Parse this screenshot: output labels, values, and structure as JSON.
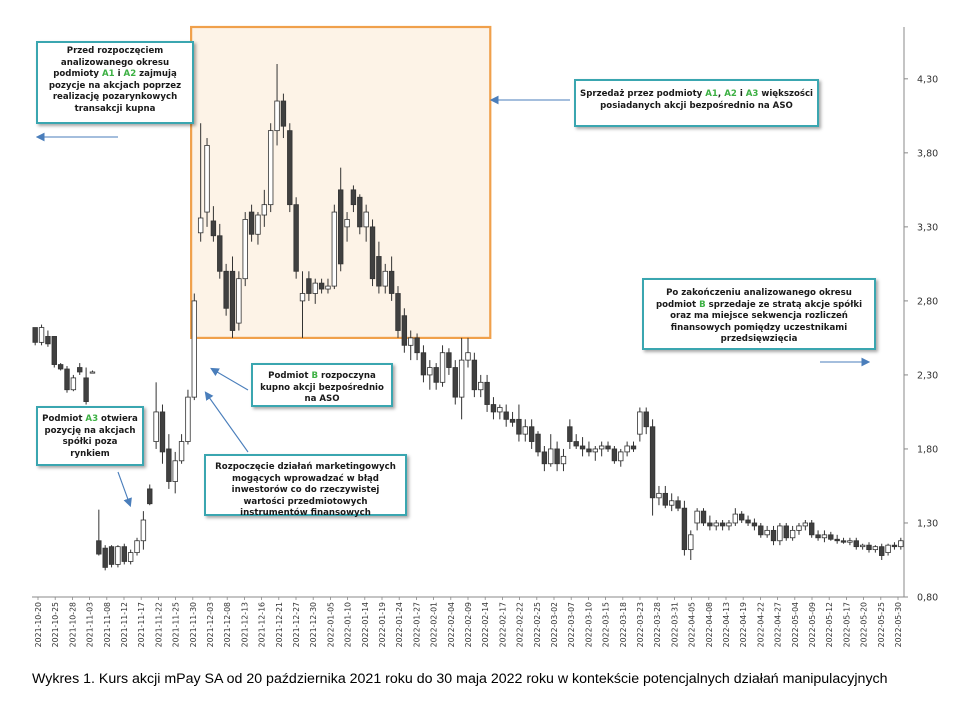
{
  "chart_data": {
    "type": "candlestick",
    "y_ticks": [
      "4,30",
      "3,80",
      "3,30",
      "2,80",
      "2,30",
      "1,80",
      "1,30",
      "0,80"
    ],
    "y_tick_values": [
      4.3,
      3.8,
      3.3,
      2.8,
      2.3,
      1.8,
      1.3,
      0.8
    ],
    "ylim": [
      0.8,
      4.65
    ],
    "y_axis_position": "right",
    "x_tick_labels": [
      "2021-10-20",
      "2021-10-25",
      "2021-10-28",
      "2021-11-03",
      "2021-11-08",
      "2021-11-12",
      "2021-11-17",
      "2021-11-22",
      "2021-11-25",
      "2021-11-30",
      "2021-12-03",
      "2021-12-08",
      "2021-12-13",
      "2021-12-16",
      "2021-12-21",
      "2021-12-27",
      "2021-12-30",
      "2022-01-05",
      "2022-01-10",
      "2022-01-14",
      "2022-01-19",
      "2022-01-24",
      "2022-01-27",
      "2022-02-01",
      "2022-02-04",
      "2022-02-09",
      "2022-02-14",
      "2022-02-17",
      "2022-02-22",
      "2022-02-25",
      "2022-03-02",
      "2022-03-07",
      "2022-03-10",
      "2022-03-15",
      "2022-03-18",
      "2022-03-23",
      "2022-03-28",
      "2022-03-31",
      "2022-04-05",
      "2022-04-08",
      "2022-04-13",
      "2022-04-19",
      "2022-04-22",
      "2022-04-27",
      "2022-05-04",
      "2022-05-09",
      "2022-05-12",
      "2022-05-17",
      "2022-05-20",
      "2022-05-25",
      "2022-05-30"
    ],
    "grid": false,
    "candles": [
      {
        "o": 2.62,
        "h": 2.62,
        "l": 2.5,
        "c": 2.52
      },
      {
        "o": 2.52,
        "h": 2.64,
        "l": 2.5,
        "c": 2.62
      },
      {
        "o": 2.56,
        "h": 2.6,
        "l": 2.49,
        "c": 2.51
      },
      {
        "o": 2.56,
        "h": 2.56,
        "l": 2.35,
        "c": 2.37
      },
      {
        "o": 2.37,
        "h": 2.38,
        "l": 2.33,
        "c": 2.34
      },
      {
        "o": 2.34,
        "h": 2.36,
        "l": 2.18,
        "c": 2.2
      },
      {
        "o": 2.2,
        "h": 2.3,
        "l": 2.19,
        "c": 2.28
      },
      {
        "o": 2.35,
        "h": 2.38,
        "l": 2.3,
        "c": 2.32
      },
      {
        "o": 2.28,
        "h": 2.35,
        "l": 2.1,
        "c": 2.12
      },
      {
        "o": 2.32,
        "h": 2.33,
        "l": 2.31,
        "c": 2.32
      },
      {
        "o": 1.18,
        "h": 1.39,
        "l": 1.08,
        "c": 1.09
      },
      {
        "o": 1.13,
        "h": 1.15,
        "l": 0.98,
        "c": 1.0
      },
      {
        "o": 1.14,
        "h": 1.15,
        "l": 1.0,
        "c": 1.02
      },
      {
        "o": 1.02,
        "h": 1.15,
        "l": 1.0,
        "c": 1.14
      },
      {
        "o": 1.14,
        "h": 1.16,
        "l": 1.02,
        "c": 1.04
      },
      {
        "o": 1.04,
        "h": 1.12,
        "l": 1.02,
        "c": 1.1
      },
      {
        "o": 1.1,
        "h": 1.2,
        "l": 1.08,
        "c": 1.18
      },
      {
        "o": 1.18,
        "h": 1.38,
        "l": 1.12,
        "c": 1.32
      },
      {
        "o": 1.53,
        "h": 1.56,
        "l": 1.42,
        "c": 1.43
      },
      {
        "o": 1.85,
        "h": 2.25,
        "l": 1.8,
        "c": 2.05
      },
      {
        "o": 2.05,
        "h": 2.1,
        "l": 1.7,
        "c": 1.78
      },
      {
        "o": 1.8,
        "h": 1.9,
        "l": 1.53,
        "c": 1.58
      },
      {
        "o": 1.58,
        "h": 1.78,
        "l": 1.5,
        "c": 1.72
      },
      {
        "o": 1.72,
        "h": 1.9,
        "l": 1.7,
        "c": 1.85
      },
      {
        "o": 1.85,
        "h": 2.2,
        "l": 1.83,
        "c": 2.15
      },
      {
        "o": 2.15,
        "h": 2.85,
        "l": 2.13,
        "c": 2.8
      },
      {
        "o": 3.26,
        "h": 4.0,
        "l": 3.2,
        "c": 3.36
      },
      {
        "o": 3.4,
        "h": 3.9,
        "l": 3.3,
        "c": 3.85
      },
      {
        "o": 3.34,
        "h": 3.44,
        "l": 3.2,
        "c": 3.24
      },
      {
        "o": 3.24,
        "h": 3.32,
        "l": 2.95,
        "c": 3.0
      },
      {
        "o": 3.0,
        "h": 3.05,
        "l": 2.7,
        "c": 2.75
      },
      {
        "o": 3.0,
        "h": 3.1,
        "l": 2.55,
        "c": 2.6
      },
      {
        "o": 2.65,
        "h": 3.0,
        "l": 2.6,
        "c": 2.95
      },
      {
        "o": 2.95,
        "h": 3.4,
        "l": 2.9,
        "c": 3.35
      },
      {
        "o": 3.4,
        "h": 3.45,
        "l": 3.2,
        "c": 3.25
      },
      {
        "o": 3.25,
        "h": 3.4,
        "l": 3.18,
        "c": 3.38
      },
      {
        "o": 3.38,
        "h": 3.55,
        "l": 3.3,
        "c": 3.45
      },
      {
        "o": 3.45,
        "h": 4.0,
        "l": 3.4,
        "c": 3.95
      },
      {
        "o": 3.95,
        "h": 4.4,
        "l": 3.85,
        "c": 4.15
      },
      {
        "o": 4.15,
        "h": 4.2,
        "l": 3.9,
        "c": 3.98
      },
      {
        "o": 3.95,
        "h": 4.0,
        "l": 3.4,
        "c": 3.45
      },
      {
        "o": 3.45,
        "h": 3.5,
        "l": 2.95,
        "c": 3.0
      },
      {
        "o": 2.8,
        "h": 3.0,
        "l": 2.55,
        "c": 2.85
      },
      {
        "o": 2.95,
        "h": 3.0,
        "l": 2.8,
        "c": 2.85
      },
      {
        "o": 2.85,
        "h": 2.95,
        "l": 2.78,
        "c": 2.92
      },
      {
        "o": 2.92,
        "h": 2.95,
        "l": 2.85,
        "c": 2.88
      },
      {
        "o": 2.88,
        "h": 2.95,
        "l": 2.85,
        "c": 2.9
      },
      {
        "o": 2.9,
        "h": 3.45,
        "l": 2.88,
        "c": 3.4
      },
      {
        "o": 3.55,
        "h": 3.7,
        "l": 3.0,
        "c": 3.05
      },
      {
        "o": 3.3,
        "h": 3.4,
        "l": 3.2,
        "c": 3.35
      },
      {
        "o": 3.55,
        "h": 3.58,
        "l": 3.4,
        "c": 3.45
      },
      {
        "o": 3.5,
        "h": 3.52,
        "l": 3.25,
        "c": 3.3
      },
      {
        "o": 3.3,
        "h": 3.45,
        "l": 3.2,
        "c": 3.4
      },
      {
        "o": 3.3,
        "h": 3.35,
        "l": 2.9,
        "c": 2.95
      },
      {
        "o": 3.1,
        "h": 3.2,
        "l": 2.85,
        "c": 2.9
      },
      {
        "o": 2.9,
        "h": 3.05,
        "l": 2.85,
        "c": 3.0
      },
      {
        "o": 3.0,
        "h": 3.1,
        "l": 2.8,
        "c": 2.85
      },
      {
        "o": 2.85,
        "h": 2.9,
        "l": 2.55,
        "c": 2.6
      },
      {
        "o": 2.7,
        "h": 2.75,
        "l": 2.45,
        "c": 2.5
      },
      {
        "o": 2.5,
        "h": 2.6,
        "l": 2.4,
        "c": 2.55
      },
      {
        "o": 2.55,
        "h": 2.58,
        "l": 2.4,
        "c": 2.45
      },
      {
        "o": 2.45,
        "h": 2.5,
        "l": 2.25,
        "c": 2.3
      },
      {
        "o": 2.3,
        "h": 2.4,
        "l": 2.2,
        "c": 2.35
      },
      {
        "o": 2.35,
        "h": 2.38,
        "l": 2.2,
        "c": 2.25
      },
      {
        "o": 2.25,
        "h": 2.5,
        "l": 2.22,
        "c": 2.45
      },
      {
        "o": 2.45,
        "h": 2.48,
        "l": 2.3,
        "c": 2.35
      },
      {
        "o": 2.35,
        "h": 2.4,
        "l": 2.1,
        "c": 2.15
      },
      {
        "o": 2.15,
        "h": 2.55,
        "l": 2.0,
        "c": 2.4
      },
      {
        "o": 2.4,
        "h": 2.55,
        "l": 2.35,
        "c": 2.45
      },
      {
        "o": 2.4,
        "h": 2.45,
        "l": 2.15,
        "c": 2.2
      },
      {
        "o": 2.2,
        "h": 2.3,
        "l": 2.15,
        "c": 2.25
      },
      {
        "o": 2.25,
        "h": 2.3,
        "l": 2.05,
        "c": 2.1
      },
      {
        "o": 2.1,
        "h": 2.15,
        "l": 2.0,
        "c": 2.05
      },
      {
        "o": 2.05,
        "h": 2.1,
        "l": 2.0,
        "c": 2.08
      },
      {
        "o": 2.05,
        "h": 2.1,
        "l": 1.95,
        "c": 2.0
      },
      {
        "o": 2.0,
        "h": 2.05,
        "l": 1.95,
        "c": 1.98
      },
      {
        "o": 2.0,
        "h": 2.1,
        "l": 1.85,
        "c": 1.9
      },
      {
        "o": 1.9,
        "h": 2.0,
        "l": 1.85,
        "c": 1.95
      },
      {
        "o": 1.95,
        "h": 2.0,
        "l": 1.8,
        "c": 1.85
      },
      {
        "o": 1.9,
        "h": 1.92,
        "l": 1.75,
        "c": 1.78
      },
      {
        "o": 1.78,
        "h": 1.82,
        "l": 1.65,
        "c": 1.7
      },
      {
        "o": 1.7,
        "h": 1.9,
        "l": 1.68,
        "c": 1.8
      },
      {
        "o": 1.8,
        "h": 1.85,
        "l": 1.65,
        "c": 1.7
      },
      {
        "o": 1.7,
        "h": 1.8,
        "l": 1.65,
        "c": 1.75
      },
      {
        "o": 1.95,
        "h": 2.0,
        "l": 1.8,
        "c": 1.85
      },
      {
        "o": 1.85,
        "h": 1.9,
        "l": 1.8,
        "c": 1.82
      },
      {
        "o": 1.82,
        "h": 1.88,
        "l": 1.75,
        "c": 1.8
      },
      {
        "o": 1.8,
        "h": 1.85,
        "l": 1.75,
        "c": 1.78
      },
      {
        "o": 1.78,
        "h": 1.82,
        "l": 1.72,
        "c": 1.8
      },
      {
        "o": 1.8,
        "h": 1.85,
        "l": 1.75,
        "c": 1.82
      },
      {
        "o": 1.82,
        "h": 1.85,
        "l": 1.78,
        "c": 1.8
      },
      {
        "o": 1.8,
        "h": 1.82,
        "l": 1.7,
        "c": 1.72
      },
      {
        "o": 1.72,
        "h": 1.8,
        "l": 1.68,
        "c": 1.78
      },
      {
        "o": 1.78,
        "h": 1.85,
        "l": 1.75,
        "c": 1.82
      },
      {
        "o": 1.82,
        "h": 1.85,
        "l": 1.78,
        "c": 1.8
      },
      {
        "o": 1.9,
        "h": 2.08,
        "l": 1.85,
        "c": 2.05
      },
      {
        "o": 2.05,
        "h": 2.08,
        "l": 1.9,
        "c": 1.95
      },
      {
        "o": 1.95,
        "h": 2.0,
        "l": 1.35,
        "c": 1.47
      },
      {
        "o": 1.47,
        "h": 1.55,
        "l": 1.42,
        "c": 1.5
      },
      {
        "o": 1.5,
        "h": 1.55,
        "l": 1.4,
        "c": 1.42
      },
      {
        "o": 1.42,
        "h": 1.5,
        "l": 1.38,
        "c": 1.45
      },
      {
        "o": 1.45,
        "h": 1.48,
        "l": 1.38,
        "c": 1.4
      },
      {
        "o": 1.4,
        "h": 1.45,
        "l": 1.08,
        "c": 1.12
      },
      {
        "o": 1.12,
        "h": 1.25,
        "l": 1.05,
        "c": 1.22
      },
      {
        "o": 1.3,
        "h": 1.4,
        "l": 1.25,
        "c": 1.38
      },
      {
        "o": 1.38,
        "h": 1.4,
        "l": 1.28,
        "c": 1.3
      },
      {
        "o": 1.3,
        "h": 1.35,
        "l": 1.25,
        "c": 1.28
      },
      {
        "o": 1.28,
        "h": 1.32,
        "l": 1.25,
        "c": 1.3
      },
      {
        "o": 1.3,
        "h": 1.32,
        "l": 1.25,
        "c": 1.28
      },
      {
        "o": 1.28,
        "h": 1.32,
        "l": 1.25,
        "c": 1.3
      },
      {
        "o": 1.3,
        "h": 1.4,
        "l": 1.28,
        "c": 1.36
      },
      {
        "o": 1.36,
        "h": 1.38,
        "l": 1.3,
        "c": 1.32
      },
      {
        "o": 1.32,
        "h": 1.35,
        "l": 1.28,
        "c": 1.3
      },
      {
        "o": 1.3,
        "h": 1.33,
        "l": 1.25,
        "c": 1.28
      },
      {
        "o": 1.28,
        "h": 1.3,
        "l": 1.2,
        "c": 1.22
      },
      {
        "o": 1.22,
        "h": 1.28,
        "l": 1.2,
        "c": 1.25
      },
      {
        "o": 1.25,
        "h": 1.28,
        "l": 1.15,
        "c": 1.18
      },
      {
        "o": 1.18,
        "h": 1.3,
        "l": 1.15,
        "c": 1.28
      },
      {
        "o": 1.28,
        "h": 1.3,
        "l": 1.18,
        "c": 1.2
      },
      {
        "o": 1.2,
        "h": 1.28,
        "l": 1.18,
        "c": 1.25
      },
      {
        "o": 1.25,
        "h": 1.3,
        "l": 1.22,
        "c": 1.28
      },
      {
        "o": 1.28,
        "h": 1.32,
        "l": 1.25,
        "c": 1.3
      },
      {
        "o": 1.3,
        "h": 1.32,
        "l": 1.2,
        "c": 1.22
      },
      {
        "o": 1.22,
        "h": 1.25,
        "l": 1.18,
        "c": 1.2
      },
      {
        "o": 1.2,
        "h": 1.25,
        "l": 1.17,
        "c": 1.22
      },
      {
        "o": 1.22,
        "h": 1.24,
        "l": 1.18,
        "c": 1.19
      },
      {
        "o": 1.19,
        "h": 1.22,
        "l": 1.16,
        "c": 1.18
      },
      {
        "o": 1.18,
        "h": 1.2,
        "l": 1.16,
        "c": 1.17
      },
      {
        "o": 1.17,
        "h": 1.2,
        "l": 1.15,
        "c": 1.18
      },
      {
        "o": 1.18,
        "h": 1.2,
        "l": 1.12,
        "c": 1.14
      },
      {
        "o": 1.14,
        "h": 1.16,
        "l": 1.12,
        "c": 1.15
      },
      {
        "o": 1.15,
        "h": 1.17,
        "l": 1.1,
        "c": 1.12
      },
      {
        "o": 1.12,
        "h": 1.15,
        "l": 1.1,
        "c": 1.14
      },
      {
        "o": 1.14,
        "h": 1.16,
        "l": 1.05,
        "c": 1.08
      },
      {
        "o": 1.1,
        "h": 1.16,
        "l": 1.08,
        "c": 1.15
      },
      {
        "o": 1.15,
        "h": 1.17,
        "l": 1.12,
        "c": 1.14
      },
      {
        "o": 1.14,
        "h": 1.2,
        "l": 1.12,
        "c": 1.18
      }
    ],
    "highlight_box": {
      "from_index": 25,
      "to_index": 71,
      "y_min": 2.55,
      "y_max": 4.65
    }
  },
  "colors": {
    "up_fill": "#ffffff",
    "down_fill": "#404040",
    "wick": "#333333",
    "highlight_border": "#f0a04b",
    "highlight_fill": "#fdf3e7",
    "note_border": "#3aa6b0",
    "arrow": "#4a7ebb",
    "accent_green": "#3cb043"
  },
  "notes": [
    {
      "id": "a1a2",
      "parts": [
        "Przed rozpoczęciem analizowanego okresu podmioty ",
        "A1",
        " i ",
        "A2",
        " zajmują pozycje na akcjach poprzez realizację pozarynkowych transakcji kupna"
      ]
    },
    {
      "id": "sell",
      "parts": [
        "Sprzedaż przez podmioty ",
        "A1",
        ", ",
        "A2",
        " i ",
        "A3",
        " większości posiadanych akcji bezpośrednio na ASO"
      ]
    },
    {
      "id": "after",
      "parts": [
        "Po zakończeniu analizowanego okresu podmiot ",
        "B",
        " sprzedaje ze stratą akcje spółki oraz ma miejsce sekwencja rozliczeń finansowych pomiędzy uczestnikami przedsięwzięcia"
      ]
    },
    {
      "id": "b-buy",
      "parts": [
        "Podmiot ",
        "B",
        " rozpoczyna kupno akcji bezpośrednio na ASO"
      ]
    },
    {
      "id": "a3",
      "parts": [
        "Podmiot ",
        "A3",
        " otwiera pozycję na akcjach spółki poza rynkiem"
      ]
    },
    {
      "id": "marketing",
      "parts": [
        "Rozpoczęcie działań marketingowych mogących wprowadzać w błąd inwestorów co do rzeczywistej wartości przedmiotowych instrumentów finansowych"
      ]
    }
  ],
  "caption": "Wykres 1. Kurs akcji mPay SA od 20 października 2021 roku do 30 maja 2022 roku w kontekście potencjalnych działań manipulacyjnych"
}
